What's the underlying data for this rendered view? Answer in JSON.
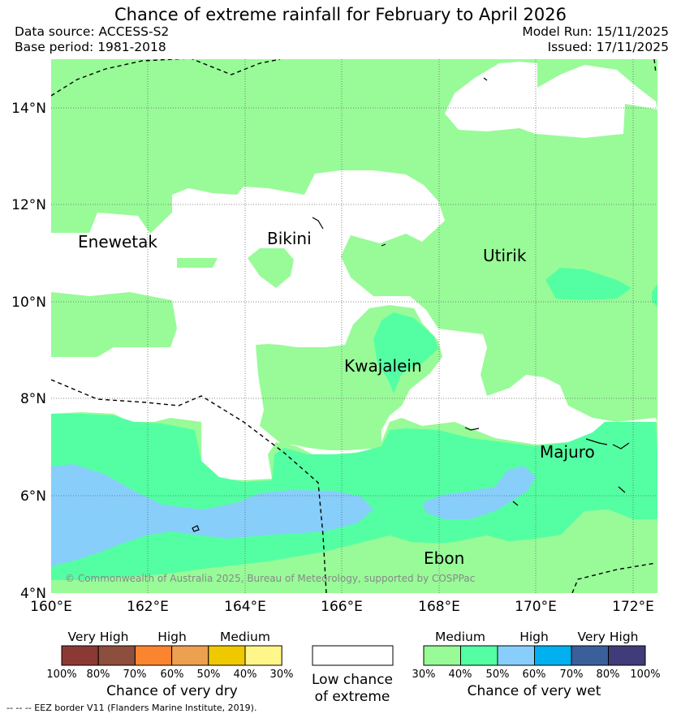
{
  "title": "Chance of extreme rainfall for February to April 2026",
  "data_source": "Data source: ACCESS-S2",
  "base_period": "Base period: 1981-2018",
  "model_run": "Model Run: 15/11/2025",
  "issued": "Issued: 17/11/2025",
  "map": {
    "lon_ticks": [
      "160°E",
      "162°E",
      "164°E",
      "166°E",
      "168°E",
      "170°E",
      "172°E"
    ],
    "lat_ticks": [
      "14°N",
      "12°N",
      "10°N",
      "8°N",
      "6°N",
      "4°N"
    ],
    "places": [
      "Enewetak",
      "Bikini",
      "Utirik",
      "Kwajalein",
      "Majuro",
      "Ebon"
    ],
    "copyright": "© Commonwealth of Australia 2025, Bureau of Meteorology, supported by COSPPac"
  },
  "legend_dry": {
    "headers": [
      "Very High",
      "High",
      "Medium"
    ],
    "ticks": [
      "100%",
      "80%",
      "70%",
      "60%",
      "50%",
      "40%",
      "30%"
    ],
    "colors": [
      "#8b3a33",
      "#8c4e3d",
      "#fb8431",
      "#eda050",
      "#f0c800",
      "#fff68a"
    ],
    "caption": "Chance of very dry"
  },
  "legend_low": {
    "line1": "Low chance",
    "line2": "of extreme"
  },
  "legend_wet": {
    "headers": [
      "Medium",
      "High",
      "Very High"
    ],
    "ticks": [
      "30%",
      "40%",
      "50%",
      "60%",
      "70%",
      "80%",
      "100%"
    ],
    "colors": [
      "#98fb98",
      "#54ffa3",
      "#87cefa",
      "#00b0ef",
      "#3a5f9a",
      "#403c7a"
    ],
    "caption": "Chance of very wet"
  },
  "footnote": "--  --  -- EEZ border V11 (Flanders Marine Institute, 2019)."
}
